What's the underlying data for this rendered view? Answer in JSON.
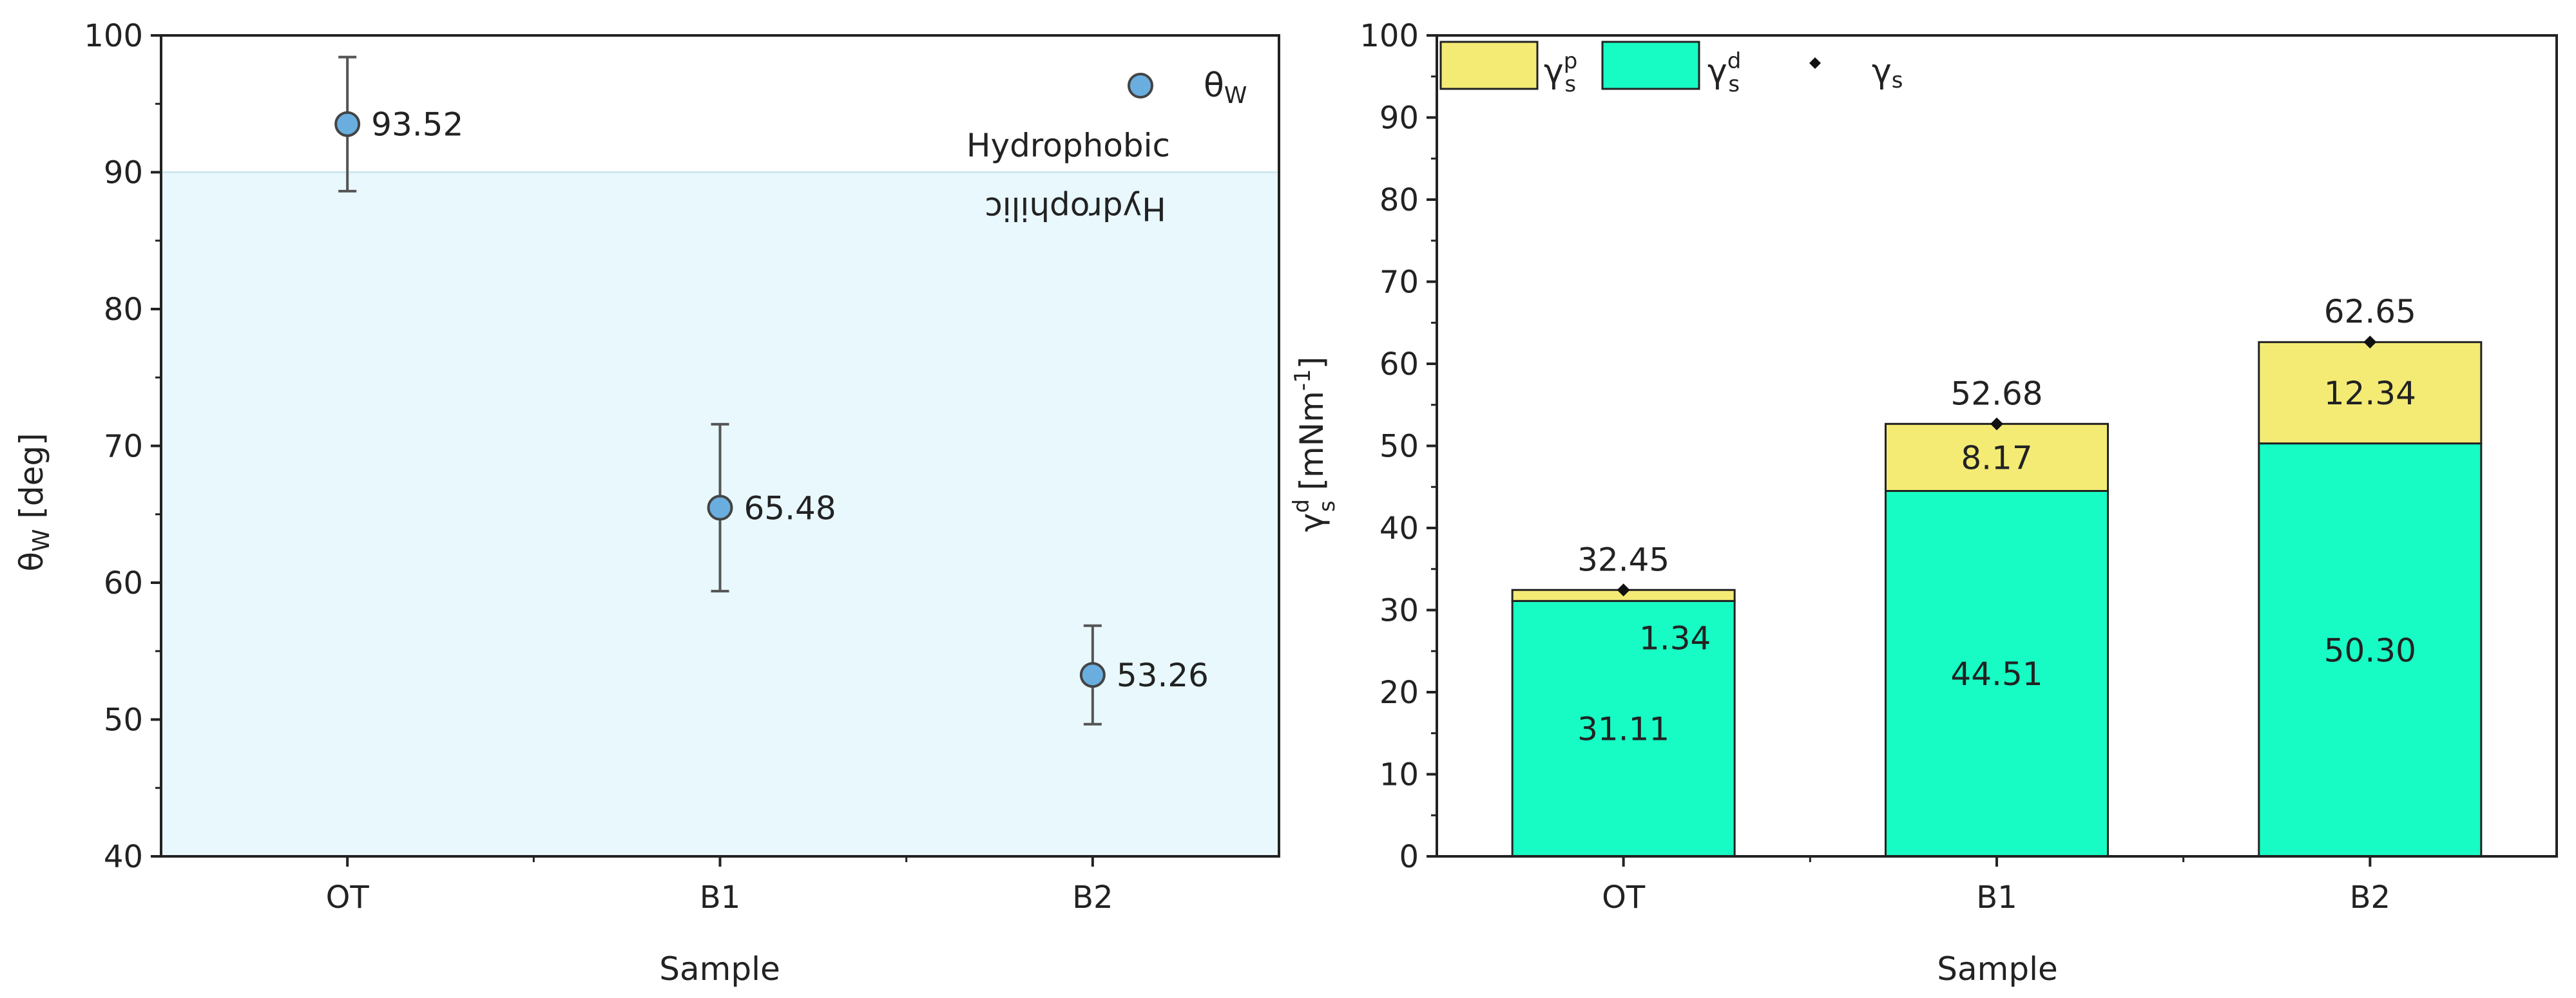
{
  "chart_data": [
    {
      "type": "scatter",
      "xlabel": "Sample",
      "ylabel": "θ_W [deg]",
      "categories": [
        "OT",
        "B1",
        "B2"
      ],
      "ylim": [
        40,
        100
      ],
      "yticks": [
        40,
        50,
        60,
        70,
        80,
        90,
        100
      ],
      "threshold": 90,
      "region_labels": {
        "above": "Hydrophobic",
        "below": "Hydrophilic"
      },
      "series": [
        {
          "name": "θ_W",
          "values": [
            93.52,
            65.48,
            53.26
          ],
          "error": [
            4.9,
            6.1,
            3.6
          ],
          "labels": [
            "93.52",
            "65.48",
            "53.26"
          ]
        }
      ],
      "colors": {
        "marker": "#6aaee0",
        "region": "#e8f8fd",
        "error": "#555555"
      },
      "legend": "top-right",
      "grid": false
    },
    {
      "type": "bar",
      "stacked": true,
      "xlabel": "Sample",
      "ylabel": "γ^d_s [mNm^-1]",
      "categories": [
        "OT",
        "B1",
        "B2"
      ],
      "ylim": [
        0,
        100
      ],
      "yticks": [
        0,
        10,
        20,
        30,
        40,
        50,
        60,
        70,
        80,
        90,
        100
      ],
      "series": [
        {
          "name": "γ^d_s",
          "values": [
            31.11,
            44.51,
            50.3
          ],
          "labels": [
            "31.11",
            "44.51",
            "50.30"
          ],
          "color": "#17fcc4"
        },
        {
          "name": "γ^p_s",
          "values": [
            1.34,
            8.17,
            12.34
          ],
          "labels": [
            "1.34",
            "8.17",
            "12.34"
          ],
          "color": "#f4eb75"
        }
      ],
      "total": {
        "name": "γ_s",
        "values": [
          32.45,
          52.68,
          62.65
        ],
        "labels": [
          "32.45",
          "52.68",
          "62.65"
        ]
      },
      "legend": "top-left",
      "grid": false
    }
  ]
}
